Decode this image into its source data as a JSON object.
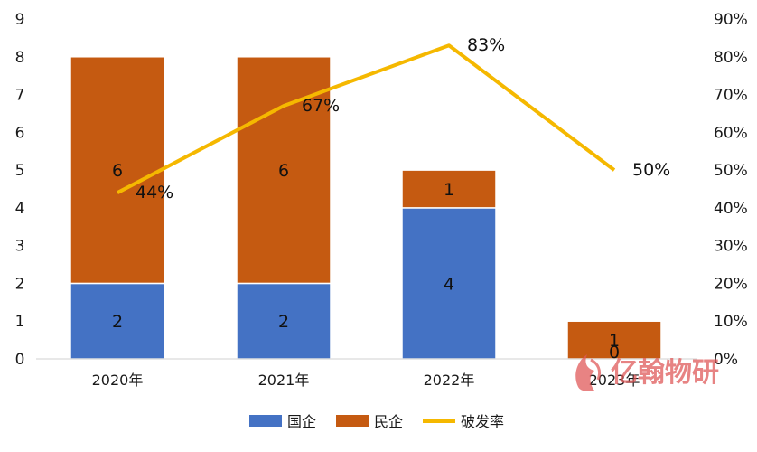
{
  "chart_data": {
    "type": "bar",
    "stacked": true,
    "categories": [
      "2020年",
      "2021年",
      "2022年",
      "2023年"
    ],
    "series": [
      {
        "name": "国企",
        "type": "bar",
        "axis": "left",
        "color": "#4472C4",
        "values": [
          2,
          2,
          4,
          0
        ]
      },
      {
        "name": "民企",
        "type": "bar",
        "axis": "left",
        "color": "#C55A11",
        "values": [
          6,
          6,
          1,
          1
        ]
      },
      {
        "name": "破发率",
        "type": "line",
        "axis": "right",
        "color": "#F5B800",
        "values": [
          0.44,
          0.67,
          0.83,
          0.5
        ]
      }
    ],
    "bar_labels": {
      "国企": [
        "2",
        "2",
        "4",
        "0"
      ],
      "民企": [
        "6",
        "6",
        "1",
        "1"
      ]
    },
    "line_labels": [
      "44%",
      "67%",
      "83%",
      "50%"
    ],
    "left_axis": {
      "min": 0,
      "max": 9,
      "ticks": [
        "0",
        "1",
        "2",
        "3",
        "4",
        "5",
        "6",
        "7",
        "8",
        "9"
      ]
    },
    "right_axis": {
      "min": 0,
      "max": 0.9,
      "ticks": [
        "0%",
        "10%",
        "20%",
        "30%",
        "40%",
        "50%",
        "60%",
        "70%",
        "80%",
        "90%"
      ]
    },
    "legend_position": "bottom",
    "grid": false
  },
  "watermark": {
    "text": "亿翰物研",
    "icon": "yihan-logo-icon"
  }
}
